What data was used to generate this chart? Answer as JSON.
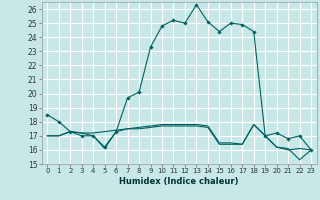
{
  "xlabel": "Humidex (Indice chaleur)",
  "xlim": [
    -0.5,
    23.5
  ],
  "ylim": [
    15,
    26.5
  ],
  "yticks": [
    15,
    16,
    17,
    18,
    19,
    20,
    21,
    22,
    23,
    24,
    25,
    26
  ],
  "xticks": [
    0,
    1,
    2,
    3,
    4,
    5,
    6,
    7,
    8,
    9,
    10,
    11,
    12,
    13,
    14,
    15,
    16,
    17,
    18,
    19,
    20,
    21,
    22,
    23
  ],
  "xtick_labels": [
    "0",
    "1",
    "2",
    "3",
    "4",
    "5",
    "6",
    "7",
    "8",
    "9",
    "10",
    "11",
    "12",
    "13",
    "14",
    "15",
    "16",
    "17",
    "18",
    "19",
    "20",
    "21",
    "22",
    "23"
  ],
  "bg_color": "#c8e8e8",
  "grid_color": "#ffffff",
  "line_color": "#006060",
  "line1_x": [
    0,
    1,
    2,
    3,
    4,
    5,
    6,
    7,
    8,
    9,
    10,
    11,
    12,
    13,
    14,
    15,
    16,
    17,
    18,
    19,
    20,
    21,
    22,
    23
  ],
  "line1_y": [
    18.5,
    18.0,
    17.3,
    17.0,
    17.0,
    16.2,
    17.3,
    19.7,
    20.1,
    23.3,
    24.8,
    25.2,
    25.0,
    26.3,
    25.1,
    24.4,
    25.0,
    24.9,
    24.4,
    17.0,
    17.2,
    16.8,
    17.0,
    16.0
  ],
  "line2_x": [
    0,
    1,
    2,
    3,
    4,
    5,
    6,
    7,
    8,
    9,
    10,
    11,
    12,
    13,
    14,
    15,
    16,
    17,
    18,
    19,
    20,
    21,
    22,
    23
  ],
  "line2_y": [
    17.0,
    17.0,
    17.3,
    17.2,
    17.2,
    17.3,
    17.4,
    17.5,
    17.6,
    17.7,
    17.8,
    17.8,
    17.8,
    17.8,
    17.7,
    16.5,
    16.5,
    16.4,
    17.8,
    17.0,
    16.2,
    16.0,
    16.1,
    16.0
  ],
  "line3_x": [
    0,
    1,
    2,
    3,
    4,
    5,
    6,
    7,
    8,
    9,
    10,
    11,
    12,
    13,
    14,
    15,
    16,
    17,
    18,
    19,
    20,
    21,
    22,
    23
  ],
  "line3_y": [
    17.0,
    17.0,
    17.3,
    17.2,
    17.0,
    16.1,
    17.3,
    17.5,
    17.5,
    17.6,
    17.7,
    17.7,
    17.7,
    17.7,
    17.6,
    16.4,
    16.4,
    16.4,
    17.8,
    17.0,
    16.2,
    16.1,
    15.3,
    16.0
  ]
}
